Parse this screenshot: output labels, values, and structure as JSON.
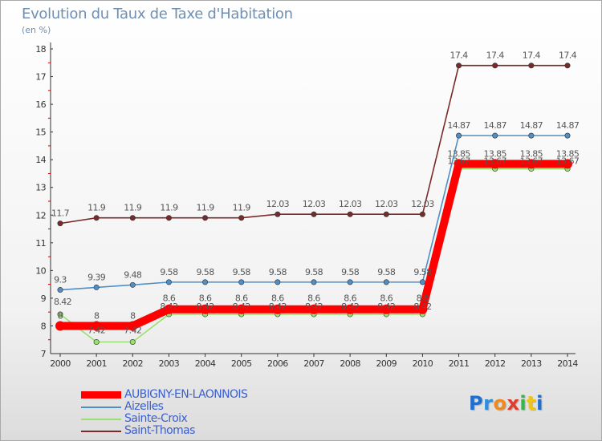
{
  "title": "Evolution du Taux de Taxe d'Habitation",
  "subtitle": "(en %)",
  "logo_text": "Proxiti",
  "chart_data": {
    "type": "line",
    "title": "Evolution du Taux de Taxe d'Habitation",
    "ylabel": "(en %)",
    "xlabel": "",
    "x": [
      "2000",
      "2001",
      "2002",
      "2003",
      "2004",
      "2005",
      "2006",
      "2007",
      "2008",
      "2009",
      "2010",
      "2011",
      "2012",
      "2013",
      "2014"
    ],
    "ylim": [
      7,
      18
    ],
    "yticks": [
      7,
      8,
      9,
      10,
      11,
      12,
      13,
      14,
      15,
      16,
      17,
      18
    ],
    "grid": false,
    "legend_position": "bottom-left",
    "series": [
      {
        "name": "AUBIGNY-EN-LAONNOIS",
        "color": "#ff0000",
        "values": [
          8,
          8,
          8,
          8.6,
          8.6,
          8.6,
          8.6,
          8.6,
          8.6,
          8.6,
          8.6,
          13.85,
          13.85,
          13.85,
          13.85
        ],
        "labels": [
          "8",
          "8",
          "8",
          "8.6",
          "8.6",
          "8.6",
          "8.6",
          "8.6",
          "8.6",
          "8.6",
          "8.6",
          "13.85",
          "13.85",
          "13.85",
          "13.85"
        ]
      },
      {
        "name": "Aizelles",
        "color": "#4f8fc7",
        "values": [
          9.3,
          9.39,
          9.48,
          9.58,
          9.58,
          9.58,
          9.58,
          9.58,
          9.58,
          9.58,
          9.58,
          14.87,
          14.87,
          14.87,
          14.87
        ],
        "labels": [
          "9.3",
          "9.39",
          "9.48",
          "9.58",
          "9.58",
          "9.58",
          "9.58",
          "9.58",
          "9.58",
          "9.58",
          "9.58",
          "14.87",
          "14.87",
          "14.87",
          "14.87"
        ]
      },
      {
        "name": "Sainte-Croix",
        "color": "#99e070",
        "values": [
          8.42,
          7.42,
          7.42,
          8.42,
          8.42,
          8.42,
          8.42,
          8.42,
          8.42,
          8.42,
          8.42,
          13.67,
          13.67,
          13.67,
          13.67
        ],
        "labels": [
          "8.42",
          "7.42",
          "7.42",
          "8.42",
          "8.42",
          "8.42",
          "8.42",
          "8.42",
          "8.42",
          "8.42",
          "8.42",
          "13.67",
          "13.67",
          "13.67",
          "13.67"
        ]
      },
      {
        "name": "Saint-Thomas",
        "color": "#7a2a2a",
        "values": [
          11.7,
          11.9,
          11.9,
          11.9,
          11.9,
          11.9,
          12.03,
          12.03,
          12.03,
          12.03,
          12.03,
          17.4,
          17.4,
          17.4,
          17.4
        ],
        "labels": [
          "11.7",
          "11.9",
          "11.9",
          "11.9",
          "11.9",
          "11.9",
          "12.03",
          "12.03",
          "12.03",
          "12.03",
          "12.03",
          "17.4",
          "17.4",
          "17.4",
          "17.4"
        ]
      }
    ]
  }
}
